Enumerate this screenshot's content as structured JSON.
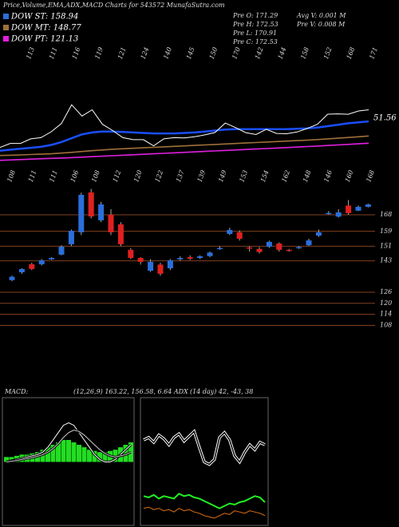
{
  "header": {
    "title": "Price,Volume,EMA,ADX,MACD Charts for 543572 MunafaSutra.com",
    "dow": [
      "DOW ST: 158.94",
      "DOW MT: 148.77",
      "DOW PT: 121.13"
    ],
    "pre": [
      "Pre  O: 171.29",
      "Pre  H: 172.53",
      "Pre  L: 170.91",
      "Pre  C: 172.53"
    ],
    "volume": [
      "Avg V: 0.001 M",
      "Pre  V: 0.008  M"
    ]
  },
  "chart_data": [
    {
      "type": "candlestick",
      "open": [
        132.6,
        136.8,
        141.2,
        141.2,
        143.8,
        146.4,
        152,
        158.5,
        180.1,
        165,
        168,
        162.8,
        149,
        144.6,
        137.7,
        141,
        139,
        143.8,
        145,
        144.6,
        145.6,
        149.4,
        157.6,
        158.5,
        150.3,
        149.5,
        150.7,
        152.4,
        149,
        150,
        151.5,
        156.7,
        168.4,
        167,
        173,
        170.2,
        172.3
      ],
      "high": [
        135,
        139,
        142,
        144,
        145,
        151.5,
        160,
        180,
        182,
        175,
        171,
        164,
        150,
        145,
        144,
        142,
        144,
        145.5,
        146,
        146,
        148,
        151,
        161,
        159.5,
        151,
        150.5,
        154,
        153,
        149.5,
        151,
        155,
        160,
        170,
        171,
        176,
        173,
        174
      ],
      "low": [
        132,
        136,
        138,
        140.5,
        143.5,
        146,
        151,
        157,
        166,
        164,
        157,
        151,
        144,
        141,
        137,
        135,
        138,
        143,
        143.5,
        144,
        145,
        149,
        157,
        154,
        148,
        147,
        150,
        148,
        148,
        149.5,
        151,
        156,
        168,
        166.5,
        168,
        170,
        172
      ],
      "close": [
        134.4,
        138.6,
        138.6,
        143.3,
        144.6,
        150.7,
        159.3,
        178.8,
        167.1,
        173.6,
        158.5,
        152,
        144.6,
        142.5,
        142.5,
        136,
        143.3,
        144.6,
        144.2,
        145.5,
        147.5,
        150,
        159.8,
        155,
        149.8,
        147.8,
        153.3,
        149,
        148.6,
        150.5,
        154.1,
        158.5,
        169,
        169.3,
        168.9,
        172.3,
        173.6
      ],
      "up_color": "#2a6fdb",
      "down_color": "#e02020",
      "ylim": [
        81,
        184
      ],
      "yticks": [
        168,
        159,
        151,
        143,
        126,
        120,
        114,
        108
      ],
      "grid": true,
      "grid_color": "#b0562a",
      "top_labels": [
        "113",
        "111",
        "116",
        "119",
        "121",
        "124",
        "140",
        "145",
        "150",
        "170",
        "142",
        "144",
        "158",
        "152",
        "168",
        "171"
      ],
      "bottom_labels": [
        "108",
        "111",
        "111",
        "106",
        "108",
        "112",
        "120",
        "122",
        "137",
        "139",
        "149",
        "153",
        "154",
        "162",
        "148",
        "146",
        "160",
        "168"
      ]
    },
    {
      "type": "line",
      "ylim": [
        105,
        238
      ],
      "annotation": "51.56",
      "series": [
        {
          "color": "#1a4fff",
          "values": [
            131,
            132,
            133,
            134,
            135,
            137,
            140,
            144,
            148,
            150,
            151,
            151,
            150.5,
            150,
            149.5,
            149,
            149,
            149,
            149.5,
            150,
            151,
            152,
            153,
            153.5,
            153.5,
            153.5,
            153.5,
            153.5,
            153.5,
            153.8,
            154.2,
            155,
            156.5,
            158,
            159.5,
            160.5,
            161.5
          ]
        },
        {
          "color": "#a0703a",
          "values": [
            126,
            126.3,
            126.6,
            127,
            127.4,
            127.8,
            128.5,
            129.3,
            130.2,
            131,
            131.8,
            132.5,
            133,
            133.5,
            134,
            134.5,
            135,
            135.5,
            136,
            136.5,
            137,
            137.5,
            138,
            138.5,
            139,
            139.5,
            140,
            140.5,
            141,
            141.5,
            142,
            142.6,
            143.3,
            144,
            144.7,
            145.5,
            146.3
          ]
        },
        {
          "color": "#e020e0",
          "values": [
            121,
            121.4,
            121.8,
            122.2,
            122.6,
            123,
            123.4,
            123.8,
            124.3,
            124.8,
            125.3,
            125.8,
            126.3,
            126.8,
            127.3,
            127.8,
            128.3,
            128.8,
            129.3,
            129.8,
            130.3,
            130.8,
            131.3,
            131.8,
            132.3,
            132.8,
            133.3,
            133.8,
            134.3,
            134.8,
            135.3,
            135.8,
            136.4,
            137,
            137.6,
            138.2,
            138.8
          ]
        }
      ]
    },
    {
      "type": "macd",
      "label": "MACD:",
      "params": "(12,26,9) 163.22, 156.58, 6.64 ADX",
      "ylim": [
        -25,
        25
      ],
      "hist_color": "#22dd22",
      "hist": [
        2,
        2,
        2.5,
        3,
        3,
        3.5,
        4,
        5,
        6,
        7,
        8,
        9,
        9,
        8,
        7,
        6,
        5,
        4.5,
        4,
        4,
        4.5,
        5,
        6,
        7,
        8
      ],
      "series": [
        {
          "color": "#ffffff",
          "values": [
            0,
            0.5,
            1,
            1.5,
            2,
            2.5,
            3,
            4,
            6,
            9,
            12,
            15,
            16,
            15,
            12,
            9,
            6,
            3,
            1,
            0,
            0,
            1,
            3,
            5,
            7
          ]
        },
        {
          "color": "#cccccc",
          "values": [
            0,
            0.3,
            0.6,
            1,
            1.4,
            1.8,
            2.3,
            3,
            4,
            5.5,
            7.5,
            10,
            12,
            13,
            12.5,
            11,
            9,
            7,
            5,
            3.5,
            2.5,
            2,
            2.5,
            3,
            4
          ]
        }
      ]
    },
    {
      "type": "adx",
      "label": "(14 day) 42, -43, 38",
      "ylim": [
        0,
        100
      ],
      "series": [
        {
          "color": "#ffffff",
          "values": [
            68,
            70,
            66,
            72,
            69,
            64,
            70,
            73,
            67,
            71,
            75,
            62,
            50,
            48,
            52,
            70,
            74,
            68,
            55,
            50,
            58,
            64,
            60,
            66,
            64
          ]
        },
        {
          "color": "#22ee22",
          "values": [
            22,
            21,
            23,
            20,
            22,
            21,
            20,
            24,
            22,
            23,
            21,
            20,
            18,
            16,
            14,
            12,
            14,
            16,
            15,
            17,
            18,
            20,
            22,
            21,
            17
          ]
        },
        {
          "color": "#e07010",
          "values": [
            12,
            13,
            11,
            12,
            10,
            11,
            9,
            12,
            10,
            11,
            9,
            8,
            6,
            5,
            4,
            6,
            8,
            7,
            10,
            9,
            8,
            10,
            9,
            8,
            6
          ]
        }
      ]
    }
  ]
}
